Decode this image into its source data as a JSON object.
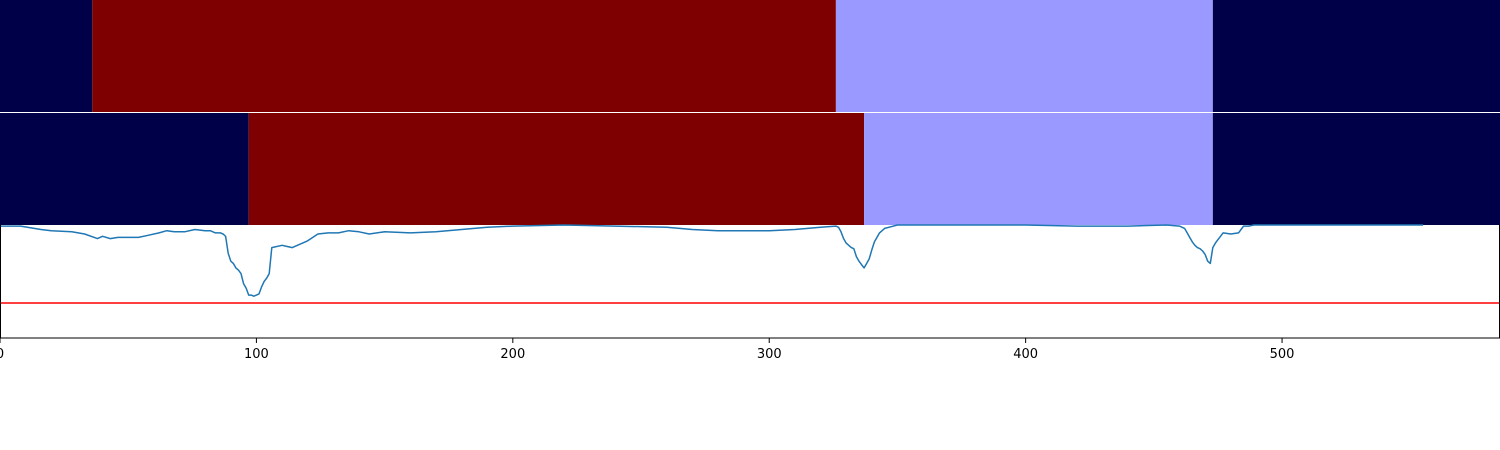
{
  "chart_data": {
    "type": "line",
    "title": "",
    "xlabel": "",
    "ylabel": "",
    "xlim": [
      0,
      585
    ],
    "x_ticks": [
      0,
      100,
      200,
      300,
      400,
      500
    ],
    "grid": false,
    "legend": "none",
    "colors": {
      "navy": "#000048",
      "red": "#7f0000",
      "lavender": "#9999ff",
      "series": "#1f77b4",
      "threshold": "#ff0000"
    },
    "segment_tracks": [
      {
        "segments": [
          {
            "start": 0,
            "end": 36,
            "color": "navy"
          },
          {
            "start": 36,
            "end": 326,
            "color": "red"
          },
          {
            "start": 326,
            "end": 473,
            "color": "lavender"
          },
          {
            "start": 473,
            "end": 585,
            "color": "navy"
          }
        ]
      },
      {
        "segments": [
          {
            "start": 0,
            "end": 97,
            "color": "navy"
          },
          {
            "start": 97,
            "end": 337,
            "color": "red"
          },
          {
            "start": 337,
            "end": 473,
            "color": "lavender"
          },
          {
            "start": 473,
            "end": 585,
            "color": "navy"
          }
        ]
      }
    ],
    "line_panel": {
      "ylim": [
        0,
        1
      ],
      "threshold": 0.31,
      "series": [
        {
          "x": [
            0,
            8,
            16,
            20,
            28,
            33,
            38,
            39,
            40,
            43,
            46,
            50,
            54,
            58,
            62,
            65,
            68,
            72,
            76,
            80,
            82,
            84,
            86,
            87,
            88,
            89,
            90,
            91,
            92,
            93,
            94,
            95,
            96,
            97,
            98,
            99,
            100,
            101,
            102,
            103,
            104,
            105,
            106,
            110,
            112,
            114,
            116,
            118,
            120,
            124,
            128,
            132,
            136,
            140,
            144,
            150,
            160,
            170,
            180,
            190,
            200,
            220,
            240,
            260,
            270,
            280,
            300,
            310,
            320,
            326,
            327,
            328,
            329,
            330,
            331,
            332,
            333,
            334,
            335,
            336,
            337,
            338,
            339,
            340,
            341,
            343,
            345,
            350,
            360,
            370,
            380,
            400,
            420,
            440,
            455,
            460,
            462,
            463,
            464,
            465,
            466,
            467,
            468,
            469,
            470,
            471,
            472,
            473,
            474,
            475,
            477,
            480,
            483,
            485,
            487,
            489,
            490,
            500,
            520,
            540,
            555
          ],
          "y": [
            0.99,
            0.99,
            0.96,
            0.95,
            0.94,
            0.92,
            0.88,
            0.89,
            0.9,
            0.88,
            0.89,
            0.89,
            0.89,
            0.91,
            0.93,
            0.95,
            0.94,
            0.94,
            0.96,
            0.95,
            0.95,
            0.93,
            0.93,
            0.92,
            0.9,
            0.75,
            0.68,
            0.66,
            0.62,
            0.6,
            0.57,
            0.48,
            0.44,
            0.38,
            0.38,
            0.37,
            0.38,
            0.39,
            0.45,
            0.5,
            0.53,
            0.57,
            0.8,
            0.82,
            0.81,
            0.8,
            0.82,
            0.84,
            0.86,
            0.92,
            0.93,
            0.93,
            0.95,
            0.94,
            0.92,
            0.94,
            0.93,
            0.94,
            0.96,
            0.98,
            0.99,
            1.0,
            0.99,
            0.98,
            0.96,
            0.95,
            0.95,
            0.96,
            0.98,
            0.99,
            0.98,
            0.94,
            0.88,
            0.84,
            0.82,
            0.8,
            0.79,
            0.72,
            0.68,
            0.65,
            0.62,
            0.66,
            0.7,
            0.78,
            0.85,
            0.93,
            0.97,
            1.0,
            1.0,
            1.0,
            1.0,
            1.0,
            0.99,
            0.99,
            1.0,
            0.99,
            0.97,
            0.93,
            0.89,
            0.85,
            0.82,
            0.8,
            0.79,
            0.77,
            0.74,
            0.68,
            0.66,
            0.8,
            0.84,
            0.87,
            0.93,
            0.92,
            0.93,
            0.99,
            0.99,
            1.0,
            1.0,
            1.0,
            1.0,
            1.0,
            1.0
          ]
        }
      ]
    }
  }
}
